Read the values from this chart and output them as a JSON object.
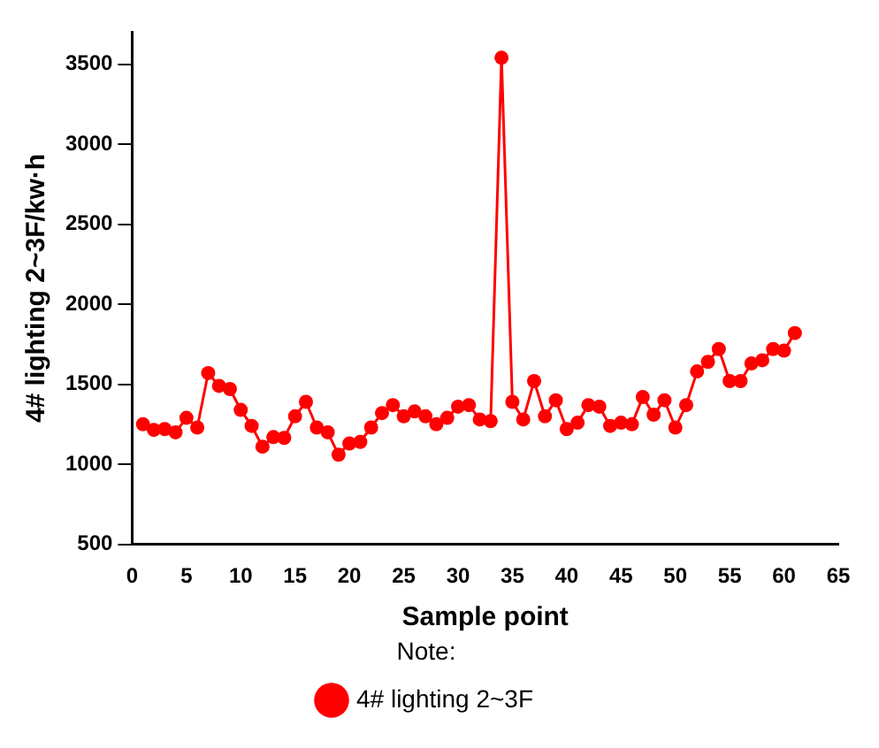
{
  "chart_data": {
    "type": "line",
    "xlabel": "Sample point",
    "ylabel": "4# lighting 2~3F/kw·h",
    "legend_title": "Note:",
    "x": [
      1,
      2,
      3,
      4,
      5,
      6,
      7,
      8,
      9,
      10,
      11,
      12,
      13,
      14,
      15,
      16,
      17,
      18,
      19,
      20,
      21,
      22,
      23,
      24,
      25,
      26,
      27,
      28,
      29,
      30,
      31,
      32,
      33,
      34,
      35,
      36,
      37,
      38,
      39,
      40,
      41,
      42,
      43,
      44,
      45,
      46,
      47,
      48,
      49,
      50,
      51,
      52,
      53,
      54,
      55,
      56,
      57,
      58,
      59,
      60,
      61
    ],
    "series": [
      {
        "name": "4# lighting 2~3F",
        "color": "#ff0000",
        "values": [
          1250,
          1215,
          1220,
          1200,
          1290,
          1230,
          1570,
          1490,
          1470,
          1340,
          1240,
          1110,
          1170,
          1165,
          1300,
          1390,
          1230,
          1200,
          1060,
          1130,
          1140,
          1230,
          1320,
          1370,
          1300,
          1330,
          1300,
          1250,
          1290,
          1360,
          1370,
          1280,
          1270,
          3540,
          1390,
          1280,
          1520,
          1300,
          1400,
          1220,
          1260,
          1370,
          1360,
          1240,
          1260,
          1250,
          1420,
          1310,
          1400,
          1230,
          1370,
          1580,
          1640,
          1720,
          1520,
          1520,
          1630,
          1650,
          1720,
          1710,
          1820
        ]
      }
    ],
    "xlim": [
      0,
      65
    ],
    "xticks": [
      0,
      5,
      10,
      15,
      20,
      25,
      30,
      35,
      40,
      45,
      50,
      55,
      60,
      65
    ],
    "ylim": [
      500,
      3700
    ],
    "yticks": [
      500,
      1000,
      1500,
      2000,
      2500,
      3000,
      3500
    ],
    "grid": false,
    "legend": "bottom",
    "marker": "circle",
    "line_style": "solid"
  }
}
